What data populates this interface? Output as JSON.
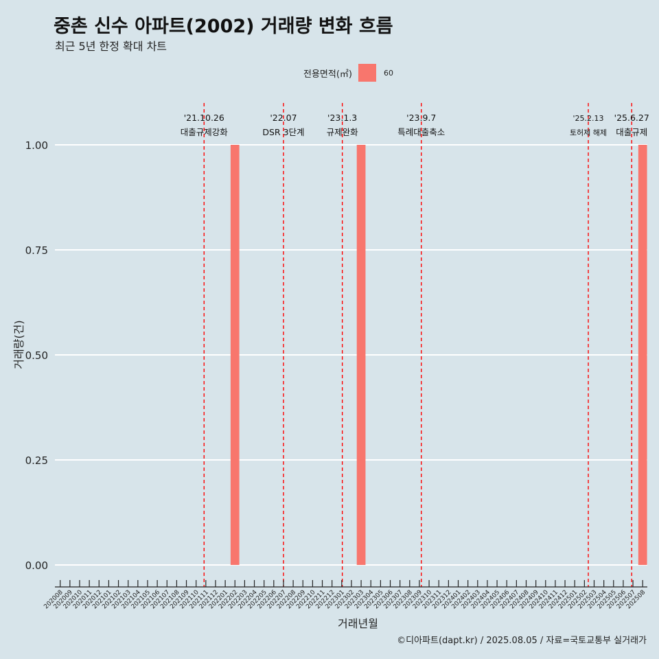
{
  "header": {
    "title": "중촌 신수 아파트(2002) 거래량 변화 흐름",
    "subtitle": "최근 5년 한정 확대 차트"
  },
  "legend": {
    "title": "전용면적(㎡)",
    "entries": [
      {
        "label": "60",
        "color": "#f8766d"
      }
    ]
  },
  "caption": "©디아파트(dapt.kr) / 2025.08.05 / 자료=국토교통부 실거래가",
  "colors": {
    "background": "#d7e4ea",
    "bar": "#f8766d",
    "event_line": "#ff0000",
    "grid": "#ffffff"
  },
  "chart_data": {
    "type": "bar",
    "title": "중촌 신수 아파트(2002) 거래량 변화 흐름",
    "subtitle": "최근 5년 한정 확대 차트",
    "xlabel": "거래년월",
    "ylabel": "거래량(건)",
    "ylim": [
      0,
      1
    ],
    "yticks": [
      "0.00",
      "0.25",
      "0.50",
      "0.75",
      "1.00"
    ],
    "grid": true,
    "legend_position": "top",
    "categories": [
      "202008",
      "202009",
      "202010",
      "202011",
      "202012",
      "202101",
      "202102",
      "202103",
      "202104",
      "202105",
      "202106",
      "202107",
      "202108",
      "202109",
      "202110",
      "202111",
      "202112",
      "202201",
      "202202",
      "202203",
      "202204",
      "202205",
      "202206",
      "202207",
      "202208",
      "202209",
      "202210",
      "202211",
      "202212",
      "202301",
      "202302",
      "202303",
      "202304",
      "202305",
      "202306",
      "202307",
      "202308",
      "202309",
      "202310",
      "202311",
      "202312",
      "202401",
      "202402",
      "202403",
      "202404",
      "202405",
      "202406",
      "202407",
      "202408",
      "202409",
      "202410",
      "202411",
      "202412",
      "202501",
      "202502",
      "202503",
      "202504",
      "202505",
      "202506",
      "202507",
      "202508"
    ],
    "series": [
      {
        "name": "60",
        "bars": [
          {
            "category": "202202",
            "value": 1
          },
          {
            "category": "202303",
            "value": 1
          },
          {
            "category": "202508",
            "value": 1
          }
        ]
      }
    ],
    "events": [
      {
        "date": "'21.10.26",
        "label": "대출규제강화",
        "category": "202110",
        "offset": 0.82
      },
      {
        "date": "'22.07",
        "label": "DSR 3단계",
        "category": "202207",
        "offset": 0
      },
      {
        "date": "'23.1.3",
        "label": "규제완화",
        "category": "202301",
        "offset": 0.06
      },
      {
        "date": "'23.9.7",
        "label": "특례대출축소",
        "category": "202309",
        "offset": 0.2
      },
      {
        "date": "'25.2.13",
        "label": "토허제 해제",
        "category": "202502",
        "offset": 0.4
      },
      {
        "date": "'25.6.27",
        "label": "대출규제",
        "category": "202506",
        "offset": 0.87
      }
    ]
  }
}
